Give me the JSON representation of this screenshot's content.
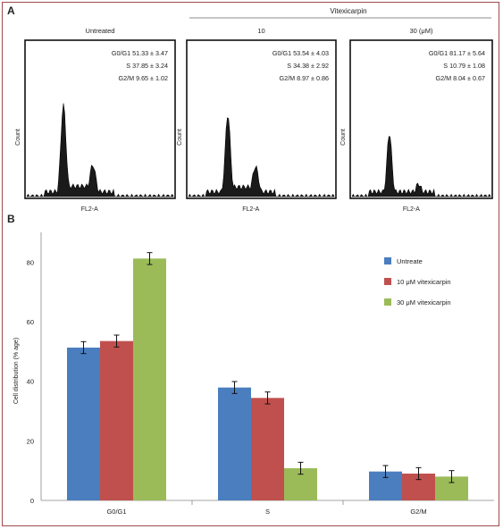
{
  "panel_a": {
    "letter": "A",
    "treatment_header": "Vitexicarpin",
    "histograms": [
      {
        "label": "Untreated",
        "stats": [
          "G0/G1 51.33 ± 3.47",
          "S 37.85 ± 3.24",
          "G2/M 9.65 ± 1.02"
        ],
        "xlabel": "FL2-A",
        "ylabel": "Count"
      },
      {
        "label": "10",
        "stats": [
          "G0/G1 53.54 ± 4.03",
          "S 34.38 ± 2.92",
          "G2/M 8.97 ± 0.86"
        ],
        "xlabel": "FL2-A",
        "ylabel": "Count"
      },
      {
        "label": "30 (μM)",
        "stats": [
          "G0/G1 81.17 ± 5.64",
          "S 10.79 ± 1.08",
          "G2/M 8.04 ± 0.67"
        ],
        "xlabel": "FL2-A",
        "ylabel": "Count"
      }
    ]
  },
  "panel_b": {
    "letter": "B"
  },
  "chart_data": {
    "type": "bar",
    "categories": [
      "G0/G1",
      "S",
      "G2/M"
    ],
    "series": [
      {
        "name": "Untreate",
        "color": "#4a7ebf",
        "values": [
          51.3,
          37.9,
          9.7
        ],
        "errors": [
          2.0,
          2.0,
          2.0
        ]
      },
      {
        "name": "10 μM vitexicarpin",
        "color": "#c0504d",
        "values": [
          53.5,
          34.4,
          9.0
        ],
        "errors": [
          2.0,
          2.0,
          2.0
        ]
      },
      {
        "name": "30 μM vitexicarpin",
        "color": "#9bbb59",
        "values": [
          81.2,
          10.8,
          8.0
        ],
        "errors": [
          2.0,
          2.0,
          2.0
        ]
      }
    ],
    "ylabel": "Cell distribution (% age)",
    "xlabel": "",
    "title": "",
    "ylim": [
      0,
      90
    ],
    "yticks": [
      0,
      20,
      40,
      60,
      80
    ],
    "legend_position": "top-right",
    "grid": false
  }
}
